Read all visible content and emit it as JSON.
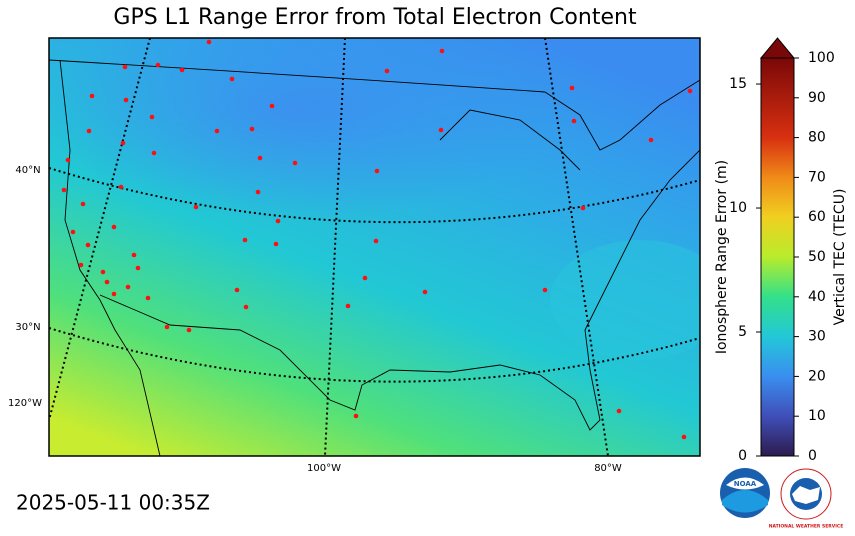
{
  "header": {
    "title": "GPS L1 Range Error from Total Electron Content"
  },
  "timestamp": "2025-05-11 00:35Z",
  "map": {
    "labels": {
      "lat40": "40°N",
      "lat30": "30°N",
      "lon120": "120°W",
      "lon100": "100°W",
      "lon80": "80°W"
    }
  },
  "colorbar": {
    "left_axis": {
      "label": "Ionosphere Range Error (m)",
      "lim": [
        0,
        16.05
      ],
      "ticks": [
        0,
        5,
        10,
        15
      ]
    },
    "right_axis": {
      "label": "Vertical TEC (TECU)",
      "lim": [
        0,
        100
      ],
      "ticks": [
        0,
        10,
        20,
        30,
        40,
        50,
        60,
        70,
        80,
        90,
        100
      ]
    },
    "colormap": [
      {
        "value": 0,
        "color": "#2d1b4e"
      },
      {
        "value": 10,
        "color": "#3f4fb8"
      },
      {
        "value": 20,
        "color": "#3a8ef0"
      },
      {
        "value": 30,
        "color": "#22c8d8"
      },
      {
        "value": 40,
        "color": "#33e08a"
      },
      {
        "value": 50,
        "color": "#b8ec2c"
      },
      {
        "value": 60,
        "color": "#f0d020"
      },
      {
        "value": 70,
        "color": "#f08a18"
      },
      {
        "value": 80,
        "color": "#d83010"
      },
      {
        "value": 100,
        "color": "#7a0808"
      }
    ]
  },
  "logos": {
    "noaa": "NOAA",
    "nws": "NATIONAL WEATHER SERVICE"
  }
}
